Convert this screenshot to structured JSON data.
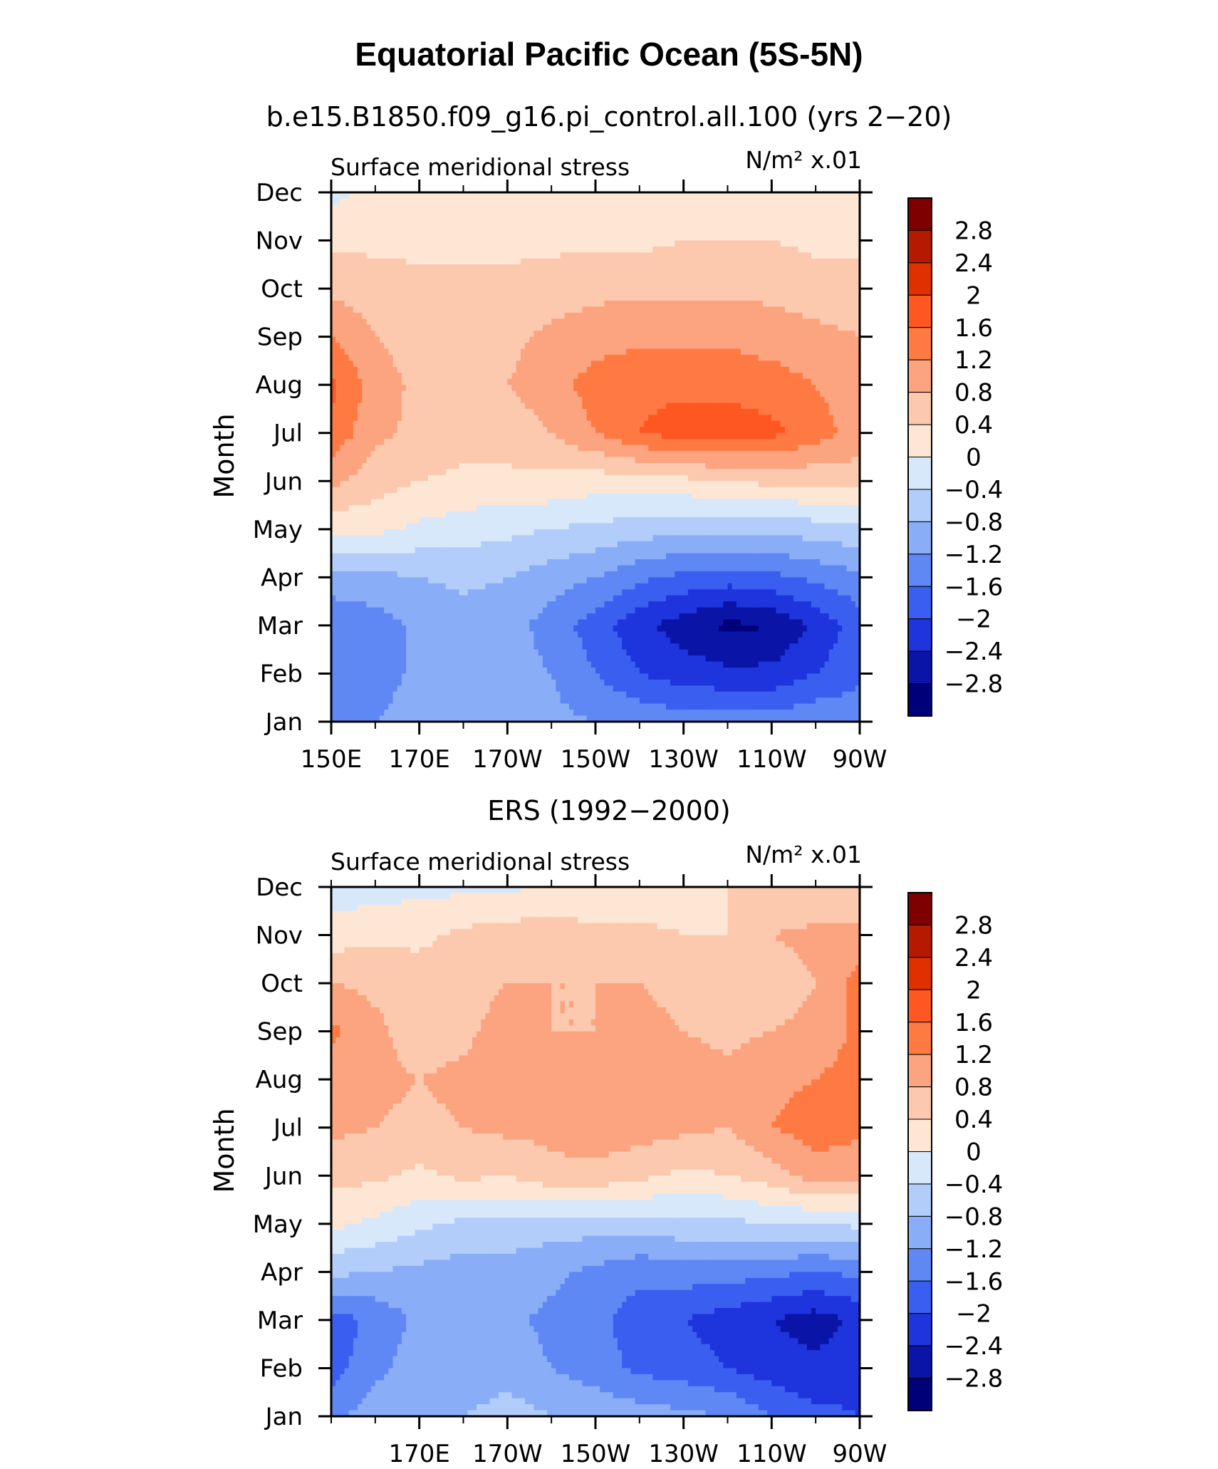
{
  "figure": {
    "title": "Equatorial Pacific Ocean (5S-5N)"
  },
  "colorbar": {
    "levels": [
      "2.8",
      "2.4",
      "2",
      "1.6",
      "1.2",
      "0.8",
      "0.4",
      "0",
      "−0.4",
      "−0.8",
      "−1.2",
      "−1.6",
      "−2",
      "−2.4",
      "−2.8"
    ],
    "colors": [
      "#7f0000",
      "#b51a00",
      "#e03000",
      "#ff5722",
      "#ff7a42",
      "#fca47f",
      "#fcc9ae",
      "#fee6d4",
      "#d8e8fb",
      "#b2cdfa",
      "#8aadf7",
      "#5f88f5",
      "#3a5ff0",
      "#1e34dc",
      "#0a15a8",
      "#00007a"
    ]
  },
  "chart_data": [
    {
      "type": "heatmap",
      "title": "b.e15.B1850.f09_g16.pi_control.all.100 (yrs 2−20)",
      "left_label": "Surface meridional stress",
      "right_label": "N/m² x.01",
      "ylabel": "Month",
      "xlabel": "",
      "x_tick_labels": [
        "150E",
        "170E",
        "170W",
        "150W",
        "130W",
        "110W",
        "90W"
      ],
      "x_ticks_lon": [
        150,
        170,
        190,
        210,
        230,
        250,
        270
      ],
      "xlim": [
        150,
        270
      ],
      "y_tick_labels": [
        "Jan",
        "Feb",
        "Mar",
        "Apr",
        "May",
        "Jun",
        "Jul",
        "Aug",
        "Sep",
        "Oct",
        "Nov",
        "Dec"
      ],
      "ylim": [
        1,
        12
      ],
      "x": [
        150,
        160,
        170,
        180,
        190,
        200,
        210,
        220,
        230,
        240,
        250,
        260,
        270
      ],
      "y": [
        1,
        2,
        3,
        4,
        5,
        6,
        7,
        8,
        9,
        10,
        11,
        12
      ],
      "z": [
        [
          -1.2,
          -1.2,
          -1.0,
          -1.0,
          -1.0,
          -1.1,
          -1.2,
          -1.3,
          -1.4,
          -1.4,
          -1.4,
          -1.3,
          -1.3
        ],
        [
          -1.6,
          -1.4,
          -1.1,
          -1.0,
          -1.0,
          -1.2,
          -1.6,
          -2.0,
          -2.2,
          -2.3,
          -2.3,
          -2.0,
          -1.7
        ],
        [
          -1.6,
          -1.4,
          -1.1,
          -1.0,
          -1.0,
          -1.4,
          -1.8,
          -2.3,
          -2.6,
          -2.9,
          -2.8,
          -2.3,
          -1.8
        ],
        [
          -0.9,
          -0.9,
          -0.8,
          -0.7,
          -0.8,
          -1.0,
          -1.2,
          -1.5,
          -1.7,
          -1.8,
          -1.7,
          -1.5,
          -1.3
        ],
        [
          0.1,
          0.1,
          -0.1,
          -0.2,
          -0.3,
          -0.4,
          -0.5,
          -0.6,
          -0.7,
          -0.7,
          -0.7,
          -0.6,
          -0.5
        ],
        [
          0.9,
          0.6,
          0.4,
          0.3,
          0.3,
          0.3,
          0.2,
          0.2,
          0.3,
          0.4,
          0.5,
          0.5,
          0.6
        ],
        [
          1.5,
          0.9,
          0.7,
          0.6,
          0.6,
          0.8,
          1.2,
          1.6,
          1.8,
          1.8,
          1.7,
          1.4,
          1.0
        ],
        [
          1.7,
          1.0,
          0.7,
          0.6,
          0.8,
          1.0,
          1.4,
          1.5,
          1.5,
          1.5,
          1.4,
          1.2,
          0.9
        ],
        [
          1.2,
          0.8,
          0.6,
          0.6,
          0.7,
          0.9,
          1.0,
          1.1,
          1.1,
          1.1,
          1.0,
          0.9,
          0.8
        ],
        [
          0.7,
          0.6,
          0.5,
          0.5,
          0.5,
          0.6,
          0.7,
          0.7,
          0.7,
          0.7,
          0.7,
          0.6,
          0.6
        ],
        [
          0.3,
          0.3,
          0.3,
          0.3,
          0.3,
          0.3,
          0.3,
          0.3,
          0.4,
          0.4,
          0.4,
          0.3,
          0.3
        ],
        [
          -0.1,
          0.1,
          0.2,
          0.2,
          0.2,
          0.2,
          0.2,
          0.2,
          0.3,
          0.3,
          0.3,
          0.2,
          0.2
        ]
      ]
    },
    {
      "type": "heatmap",
      "title": "ERS (1992−2000)",
      "left_label": "Surface meridional stress",
      "right_label": "N/m² x.01",
      "ylabel": "Month",
      "xlabel": "",
      "x_tick_labels": [
        "170E",
        "170W",
        "150W",
        "130W",
        "110W",
        "90W"
      ],
      "x_ticks_lon": [
        170,
        190,
        210,
        230,
        250,
        270
      ],
      "xlim": [
        150,
        270
      ],
      "y_tick_labels": [
        "Jan",
        "Feb",
        "Mar",
        "Apr",
        "May",
        "Jun",
        "Jul",
        "Aug",
        "Sep",
        "Oct",
        "Nov",
        "Dec"
      ],
      "ylim": [
        1,
        12
      ],
      "x": [
        150,
        160,
        170,
        180,
        190,
        200,
        210,
        220,
        230,
        240,
        250,
        260,
        270
      ],
      "y": [
        1,
        2,
        3,
        4,
        5,
        6,
        7,
        8,
        9,
        10,
        11,
        12
      ],
      "z": [
        [
          -1.3,
          -1.0,
          -0.9,
          -0.8,
          -0.6,
          -0.8,
          -0.9,
          -1.0,
          -1.1,
          -1.2,
          -1.6,
          -1.9,
          -2.0
        ],
        [
          -1.8,
          -1.3,
          -1.0,
          -1.1,
          -1.0,
          -1.2,
          -1.4,
          -1.7,
          -1.8,
          -2.0,
          -2.2,
          -2.3,
          -2.1
        ],
        [
          -1.8,
          -1.5,
          -1.1,
          -1.0,
          -1.1,
          -1.3,
          -1.5,
          -1.8,
          -2.0,
          -2.2,
          -2.4,
          -2.6,
          -2.3
        ],
        [
          -0.7,
          -0.8,
          -0.9,
          -1.0,
          -1.0,
          -1.1,
          -1.3,
          -1.5,
          -1.4,
          -1.4,
          -1.5,
          -1.6,
          -1.5
        ],
        [
          0.1,
          -0.1,
          -0.3,
          -0.5,
          -0.5,
          -0.6,
          -0.6,
          -0.6,
          -0.5,
          -0.5,
          -0.4,
          -0.4,
          -0.3
        ],
        [
          0.5,
          0.5,
          0.3,
          0.5,
          0.4,
          0.7,
          0.7,
          0.5,
          0.3,
          0.4,
          0.6,
          1.0,
          0.9
        ],
        [
          0.9,
          0.8,
          0.7,
          0.8,
          0.9,
          0.9,
          1.0,
          1.0,
          0.9,
          0.8,
          1.2,
          1.4,
          1.3
        ],
        [
          0.9,
          0.9,
          0.8,
          0.9,
          1.0,
          1.0,
          1.0,
          1.1,
          1.0,
          0.9,
          1.1,
          1.2,
          1.4
        ],
        [
          1.3,
          0.9,
          0.6,
          0.7,
          1.0,
          0.8,
          0.8,
          0.9,
          0.8,
          0.7,
          0.8,
          0.9,
          1.3
        ],
        [
          0.8,
          0.7,
          0.6,
          0.6,
          0.8,
          0.8,
          0.8,
          0.8,
          0.7,
          0.5,
          0.6,
          0.8,
          1.4
        ],
        [
          0.2,
          0.3,
          0.3,
          0.5,
          0.6,
          0.6,
          0.5,
          0.5,
          0.4,
          0.4,
          0.8,
          0.9,
          0.9
        ],
        [
          -0.2,
          -0.2,
          -0.1,
          -0.1,
          -0.1,
          0.1,
          0.1,
          0.1,
          0.2,
          0.4,
          0.4,
          0.5,
          0.4
        ]
      ]
    }
  ]
}
